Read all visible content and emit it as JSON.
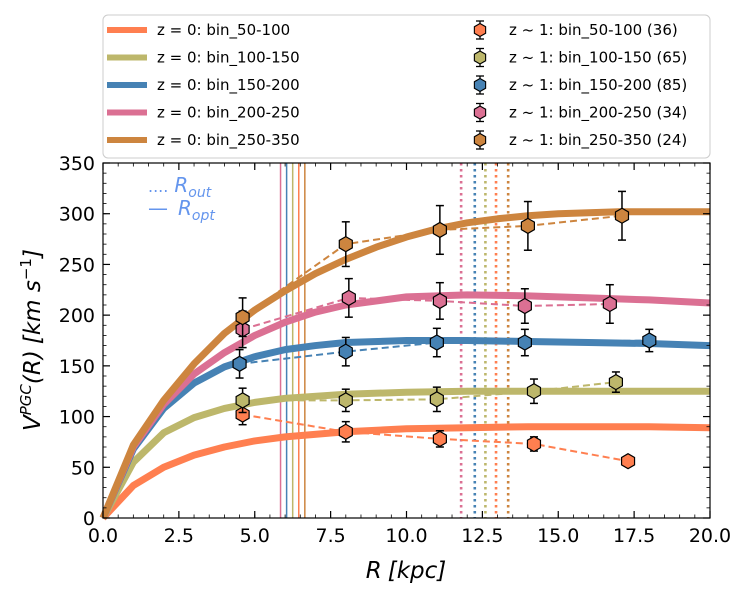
{
  "chart_data": {
    "type": "line",
    "xlabel_main": "R",
    "xlabel_unit": "[kpc]",
    "ylabel_main": "V",
    "ylabel_sup": "PGC",
    "ylabel_arg": "(R)",
    "ylabel_unit": "[km s",
    "ylabel_unit_sup": "−1",
    "ylabel_unit_end": "]",
    "xlim": [
      0,
      20
    ],
    "ylim": [
      0,
      350
    ],
    "xticks": [
      0,
      2.5,
      5,
      7.5,
      10,
      12.5,
      15,
      17.5,
      20
    ],
    "xtick_labels": [
      "0.0",
      "2.5",
      "5.0",
      "7.5",
      "10.0",
      "12.5",
      "15.0",
      "17.5",
      "20.0"
    ],
    "yticks": [
      0,
      50,
      100,
      150,
      200,
      250,
      300,
      350
    ],
    "ytick_labels": [
      "0",
      "50",
      "100",
      "150",
      "200",
      "250",
      "300",
      "350"
    ],
    "annotations": {
      "rout_prefix": "....",
      "rout_label": "R",
      "rout_sub": "out",
      "ropt_prefix": "—",
      "ropt_label": "R",
      "ropt_sub": "opt",
      "color": "#6495ed"
    },
    "model_series": [
      {
        "name": "z = 0: bin_50-100",
        "color": "#ff7f50",
        "x": [
          0,
          1,
          2,
          3,
          4,
          5,
          6,
          8,
          10,
          12,
          14,
          16,
          18,
          20
        ],
        "y": [
          0,
          32,
          50,
          62,
          70,
          76,
          80,
          85,
          88,
          89,
          90,
          90,
          90,
          89
        ]
      },
      {
        "name": "z = 0: bin_100-150",
        "color": "#bdb76b",
        "x": [
          0,
          1,
          2,
          3,
          4,
          5,
          6,
          8,
          10,
          12,
          14,
          16,
          18,
          20
        ],
        "y": [
          0,
          55,
          84,
          99,
          108,
          114,
          118,
          122,
          124,
          125,
          125,
          125,
          125,
          125
        ]
      },
      {
        "name": "z = 0: bin_150-200",
        "color": "#4682b4",
        "x": [
          0,
          1,
          2,
          3,
          4,
          5,
          6,
          7,
          8,
          10,
          12,
          14,
          16,
          18,
          20
        ],
        "y": [
          0,
          68,
          108,
          133,
          149,
          159,
          166,
          170,
          173,
          175,
          175,
          174,
          173,
          172,
          170
        ]
      },
      {
        "name": "z = 0: bin_200-250",
        "color": "#db7093",
        "x": [
          0,
          1,
          2,
          3,
          4,
          5,
          6,
          7,
          8,
          10,
          12,
          14,
          16,
          18,
          20
        ],
        "y": [
          0,
          70,
          112,
          142,
          163,
          180,
          193,
          203,
          210,
          218,
          220,
          219,
          217,
          215,
          212
        ]
      },
      {
        "name": "z = 0: bin_250-350",
        "color": "#cd853f",
        "x": [
          0,
          1,
          2,
          3,
          4,
          5,
          6,
          7,
          8,
          9,
          10,
          11,
          12,
          13,
          14,
          15,
          16,
          17,
          18,
          20
        ],
        "y": [
          0,
          72,
          116,
          152,
          182,
          205,
          224,
          241,
          255,
          267,
          277,
          285,
          291,
          295,
          298,
          300,
          301,
          302,
          302,
          302
        ]
      }
    ],
    "observed_series": [
      {
        "name": "z ~ 1: bin_50-100 (36)",
        "color": "#ff7f50",
        "x": [
          4.6,
          8.0,
          11.1,
          14.2,
          17.3
        ],
        "y": [
          102,
          85,
          78,
          73,
          56
        ],
        "err": [
          10,
          10,
          8,
          7,
          4
        ]
      },
      {
        "name": "z ~ 1: bin_100-150 (65)",
        "color": "#bdb76b",
        "x": [
          4.6,
          8.0,
          11.0,
          14.2,
          16.9
        ],
        "y": [
          116,
          116,
          117,
          125,
          134
        ],
        "err": [
          12,
          11,
          12,
          12,
          10
        ]
      },
      {
        "name": "z ~ 1: bin_150-200 (85)",
        "color": "#4682b4",
        "x": [
          4.5,
          8.0,
          11.0,
          13.9,
          18.0
        ],
        "y": [
          152,
          164,
          173,
          173,
          175
        ],
        "err": [
          14,
          14,
          14,
          13,
          11
        ]
      },
      {
        "name": "z ~ 1: bin_200-250 (34)",
        "color": "#db7093",
        "x": [
          4.6,
          8.1,
          11.1,
          13.9,
          16.7
        ],
        "y": [
          186,
          217,
          214,
          209,
          211
        ],
        "err": [
          18,
          19,
          18,
          17,
          19
        ]
      },
      {
        "name": "z ~ 1: bin_250-350 (24)",
        "color": "#cd853f",
        "x": [
          4.6,
          8.0,
          11.1,
          14.0,
          17.1
        ],
        "y": [
          198,
          270,
          284,
          288,
          298
        ],
        "err": [
          19,
          22,
          24,
          24,
          24
        ]
      }
    ],
    "ropt_lines": [
      {
        "color": "#db7093",
        "x": 5.85
      },
      {
        "color": "#4682b4",
        "x": 6.05
      },
      {
        "color": "#bdb76b",
        "x": 6.25
      },
      {
        "color": "#ff7f50",
        "x": 6.45
      },
      {
        "color": "#cd853f",
        "x": 6.65
      }
    ],
    "rout_lines": [
      {
        "color": "#db7093",
        "x": 11.8
      },
      {
        "color": "#4682b4",
        "x": 12.25
      },
      {
        "color": "#bdb76b",
        "x": 12.6
      },
      {
        "color": "#ff7f50",
        "x": 12.95
      },
      {
        "color": "#cd853f",
        "x": 13.35
      }
    ]
  }
}
